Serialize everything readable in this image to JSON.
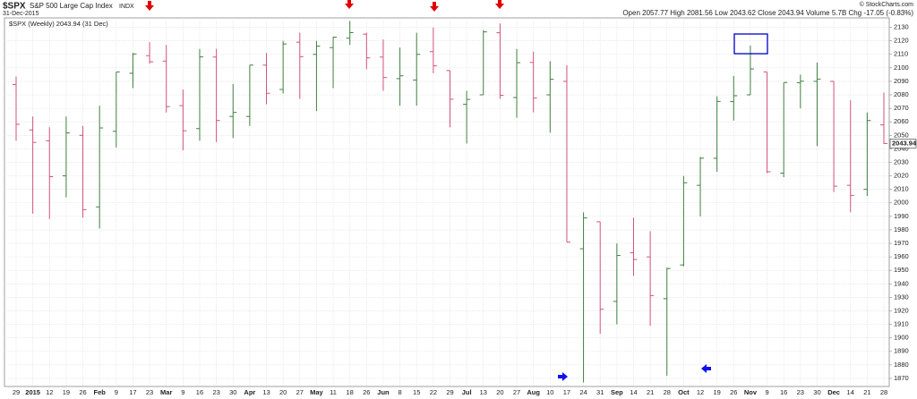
{
  "chart_data": {
    "type": "ohlc",
    "symbol": "$SPX",
    "name": "S&P 500 Large Cap Index",
    "exchange": "INDX",
    "date": "31-Dec-2015",
    "copyright": "© StockCharts.com",
    "quote": "Open 2057.77 High 2081.56 Low 2043.62 Close 2043.94 Volume 5.7B Chg -17.05 (-0.83%)",
    "legend": "$SPX (Weekly) 2043.94 (31 Dec)",
    "last_price": 2043.94,
    "up_color": "#3f7f3f",
    "down_color": "#d2517e",
    "grid": true,
    "categories": [
      "29",
      "2015",
      "12",
      "19",
      "26",
      "Feb",
      "9",
      "17",
      "23",
      "Mar",
      "9",
      "16",
      "23",
      "30",
      "Apr",
      "13",
      "20",
      "27",
      "May",
      "11",
      "18",
      "26",
      "Jun",
      "8",
      "15",
      "22",
      "29",
      "Jul",
      "13",
      "20",
      "27",
      "Aug",
      "10",
      "17",
      "24",
      "31",
      "Sep",
      "14",
      "21",
      "28",
      "Oct",
      "12",
      "19",
      "26",
      "Nov",
      "9",
      "16",
      "23",
      "30",
      "Dec",
      "14",
      "21",
      "28"
    ],
    "open": [
      2087.6,
      2054,
      2046,
      2020,
      2050,
      1997,
      2053,
      2096,
      2109,
      2105,
      2072,
      2055,
      2108,
      2064,
      2064,
      2102,
      2084,
      2119,
      2110,
      2115,
      2122,
      2125,
      2108,
      2092,
      2091,
      2112,
      2098,
      2073,
      2080,
      2126,
      2078,
      2104,
      2080,
      2090,
      1966,
      1986,
      1927,
      1963,
      1960,
      1929,
      1954,
      2013,
      2033,
      2075,
      2080,
      2097,
      2022,
      2089,
      2090,
      2090,
      2013,
      2010,
      2057.77
    ],
    "high": [
      2093.6,
      2064,
      2056,
      2064,
      2057,
      2072,
      2097,
      2111,
      2119,
      2117,
      2084,
      2114,
      2114,
      2088,
      2102,
      2111,
      2120,
      2126,
      2120,
      2123,
      2134.7,
      2126,
      2121,
      2115,
      2126,
      2129.9,
      2098,
      2083,
      2128,
      2132.8,
      2114,
      2112,
      2105,
      2102,
      1993,
      1986,
      1970,
      1989,
      1979,
      1952,
      2020,
      2034,
      2079,
      2094,
      2116.5,
      2097,
      2089,
      2095,
      2104,
      2090,
      2076,
      2067,
      2081.56
    ],
    "low": [
      2046,
      1992,
      1988,
      2004,
      1989,
      1981,
      2041,
      2085,
      2103,
      2067,
      2039,
      2046,
      2045,
      2048,
      2057,
      2073,
      2081,
      2077,
      2068,
      2085,
      2117,
      2099,
      2083,
      2072,
      2072,
      2096,
      2056,
      2044,
      2080,
      2077,
      2063,
      2067,
      2052,
      1971,
      1867,
      1903,
      1910,
      1946,
      1909,
      1872,
      1953,
      1990,
      2023,
      2061,
      2080,
      2022,
      2019,
      2070,
      2042,
      2008,
      1993,
      2005,
      2043.62
    ],
    "close": [
      2058.2,
      2044.8,
      2019.4,
      2051.8,
      1994.99,
      2055.5,
      2096.99,
      2110.3,
      2104.5,
      2071.3,
      2053.4,
      2108.1,
      2061,
      2066.96,
      2102.06,
      2081.18,
      2117.69,
      2108.29,
      2116.1,
      2122.73,
      2126.06,
      2107.39,
      2092.83,
      2094.11,
      2109.99,
      2101.49,
      2076.78,
      2076.62,
      2126.64,
      2079.65,
      2103.84,
      2077.57,
      2091.54,
      1970.89,
      1988.87,
      1921.22,
      1961.05,
      1958.08,
      1931.34,
      1951.36,
      2014.89,
      2033.11,
      2075.15,
      2079.36,
      2099.2,
      2023.04,
      2089.17,
      2090.11,
      2091.69,
      2012.37,
      2005.55,
      2060.99,
      2043.94
    ],
    "ylim": [
      1864,
      2137
    ],
    "yticks": [
      1870,
      1880,
      1890,
      1900,
      1910,
      1920,
      1930,
      1940,
      1950,
      1960,
      1970,
      1980,
      1990,
      2000,
      2010,
      2020,
      2030,
      2040,
      2050,
      2060,
      2070,
      2080,
      2090,
      2100,
      2110,
      2120,
      2130
    ]
  }
}
